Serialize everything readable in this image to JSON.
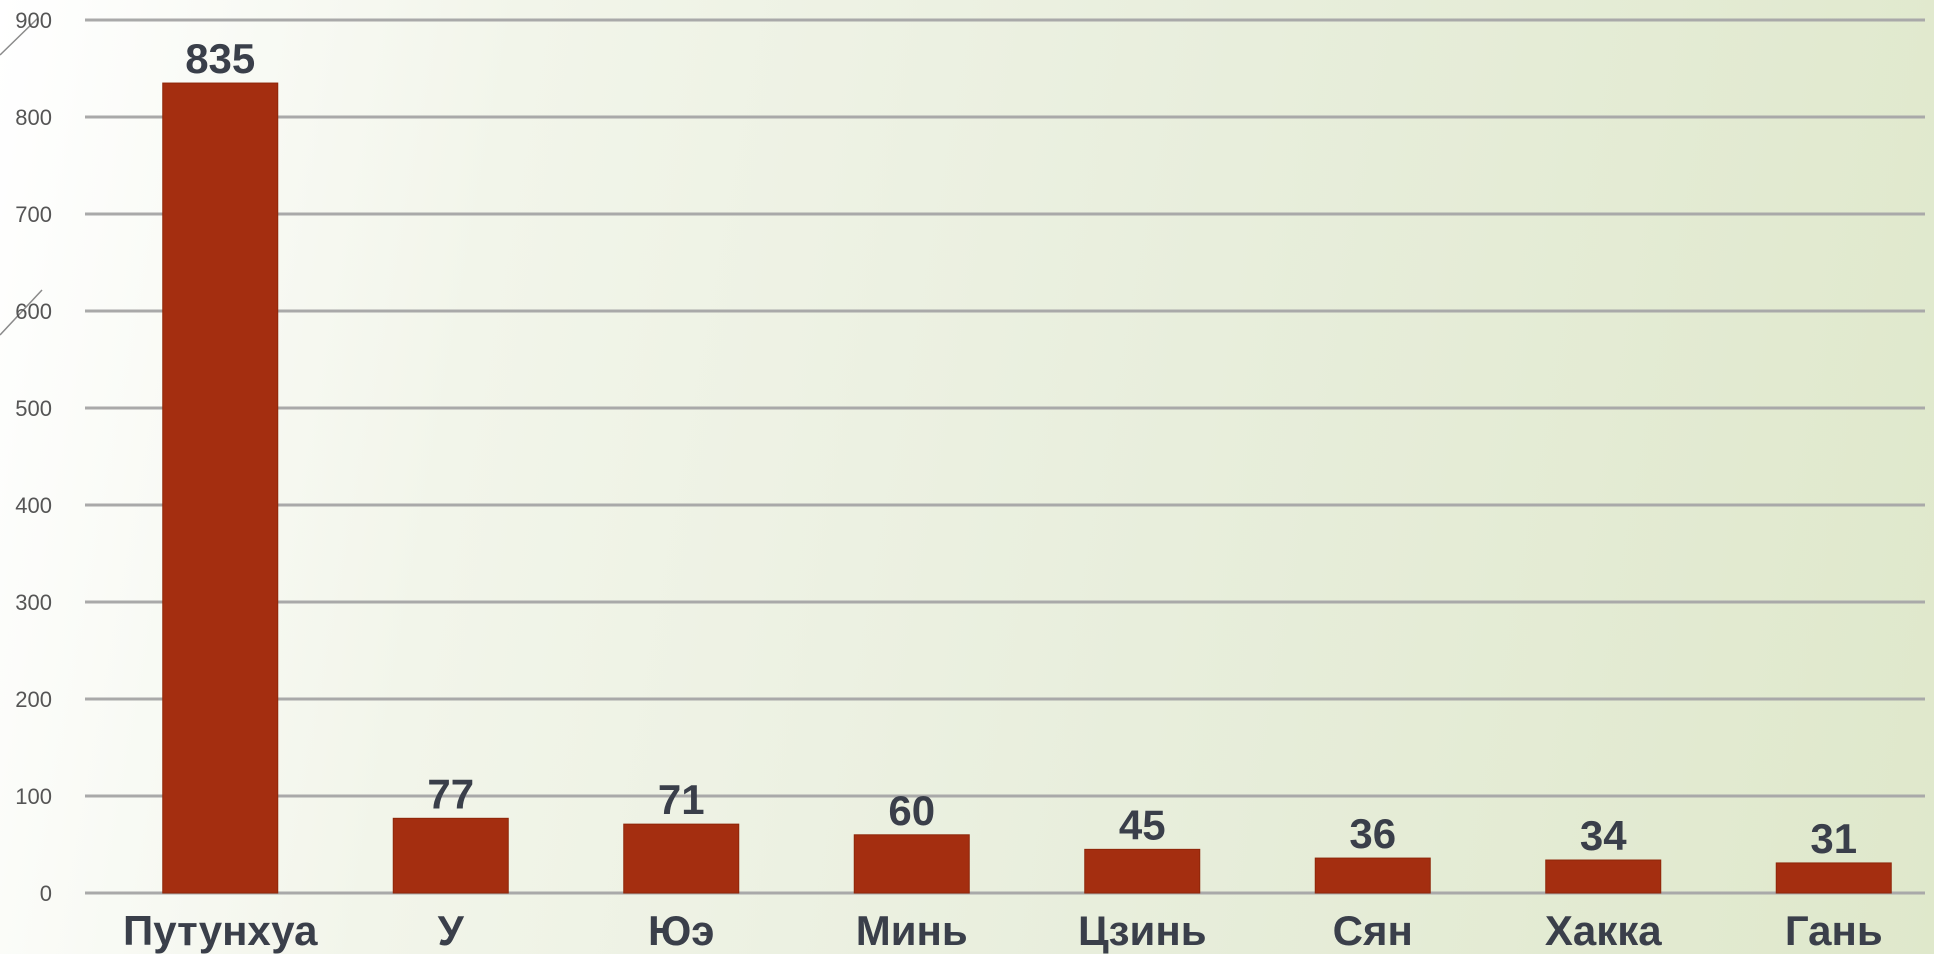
{
  "chart_data": {
    "type": "bar",
    "title": "",
    "xlabel": "",
    "ylabel": "",
    "categories": [
      "Путунхуа",
      "У",
      "Юэ",
      "Минь",
      "Цзинь",
      "Сян",
      "Хакка",
      "Гань"
    ],
    "values": [
      835,
      77,
      71,
      60,
      45,
      36,
      34,
      31
    ],
    "ylim": [
      0,
      900
    ],
    "yticks": [
      0,
      100,
      200,
      300,
      400,
      500,
      600,
      700,
      800,
      900
    ],
    "grid": true,
    "data_labels": true,
    "colors": {
      "bar": "#a42e10",
      "bar_edge": "#8e2609",
      "grid": "#a9a9a9"
    }
  }
}
